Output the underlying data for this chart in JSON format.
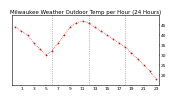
{
  "title": "Milwaukee Weather Outdoor Temp per Hour (24 Hours)",
  "hours": [
    0,
    1,
    2,
    3,
    4,
    5,
    6,
    7,
    8,
    9,
    10,
    11,
    12,
    13,
    14,
    15,
    16,
    17,
    18,
    19,
    20,
    21,
    22,
    23
  ],
  "temps": [
    44,
    42,
    40,
    36,
    33,
    30,
    32,
    36,
    40,
    44,
    46,
    47,
    46,
    44,
    42,
    40,
    38,
    36,
    34,
    31,
    28,
    25,
    22,
    18
  ],
  "y_min": 15,
  "y_max": 50,
  "y_ticks": [
    20,
    25,
    30,
    35,
    40,
    45
  ],
  "x_ticks": [
    1,
    3,
    5,
    7,
    9,
    11,
    13,
    15,
    17,
    19,
    21,
    23
  ],
  "dot_color": "#ff0000",
  "bg_color": "#ffffff",
  "grid_color": "#888888",
  "title_fontsize": 4.0,
  "tick_fontsize": 3.2,
  "dot_size": 1.5,
  "vlines": [
    6,
    12,
    18
  ]
}
